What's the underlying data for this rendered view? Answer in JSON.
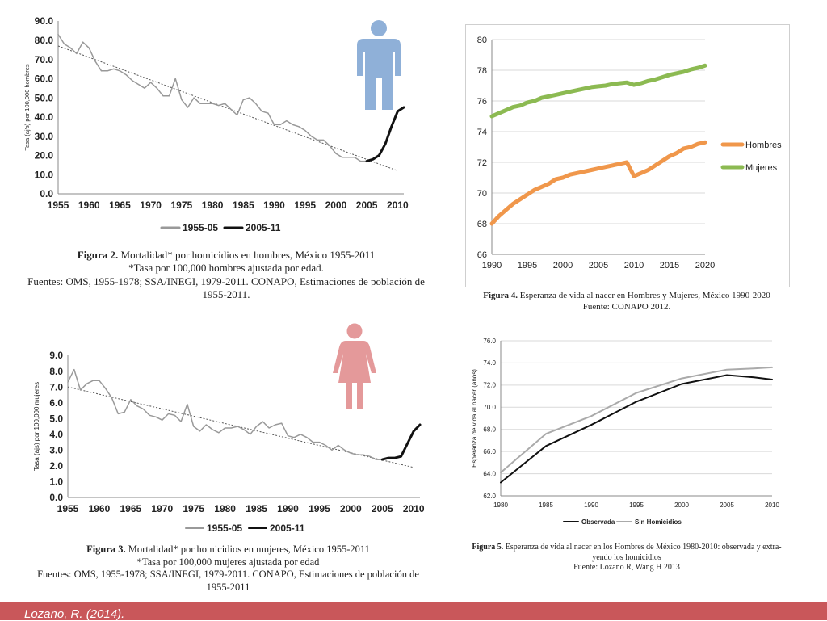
{
  "colors": {
    "man_icon": "#8fb0d8",
    "woman_icon": "#e4999a",
    "hombres": "#f0974b",
    "mujeres": "#8cba52",
    "footer": "#c9575a",
    "dark": "#111111",
    "gray": "#999999"
  },
  "icons": {
    "man": "man-icon",
    "woman": "woman-icon"
  },
  "footer_text": "Lozano, R. (2014).",
  "fig2": {
    "caption": {
      "title_bold": "Figura 2.",
      "title_rest": " Mortalidad* por homicidios en hombres, México 1955-2011",
      "line2": "*Tasa por 100,000 hombres ajustada por edad.",
      "line3": "Fuentes: OMS, 1955-1978; SSA/INEGI, 1979-2011. CONAPO, Estimaciones de población de",
      "line4": "1955-2011."
    },
    "chart_data": {
      "type": "line",
      "ylabel": "Tasa (aj's) por 100,000 hombres",
      "ylim": [
        0,
        90
      ],
      "yticks": [
        "0.0",
        "10.0",
        "20.0",
        "30.0",
        "40.0",
        "50.0",
        "60.0",
        "70.0",
        "80.0",
        "90.0"
      ],
      "xlim": [
        1955,
        2011
      ],
      "xticks": [
        "1955",
        "1960",
        "1965",
        "1970",
        "1975",
        "1980",
        "1985",
        "1990",
        "1995",
        "2000",
        "2005",
        "2010"
      ],
      "series": [
        {
          "name": "1955-05",
          "x": [
            1955,
            1956,
            1957,
            1958,
            1959,
            1960,
            1961,
            1962,
            1963,
            1964,
            1965,
            1966,
            1967,
            1968,
            1969,
            1970,
            1971,
            1972,
            1973,
            1974,
            1975,
            1976,
            1977,
            1978,
            1979,
            1980,
            1981,
            1982,
            1983,
            1984,
            1985,
            1986,
            1987,
            1988,
            1989,
            1990,
            1991,
            1992,
            1993,
            1994,
            1995,
            1996,
            1997,
            1998,
            1999,
            2000,
            2001,
            2002,
            2003,
            2004,
            2005
          ],
          "values": [
            83,
            78,
            76,
            73,
            79,
            76,
            69,
            64,
            64,
            65,
            64,
            62,
            59,
            57,
            55,
            58,
            55,
            51,
            51,
            60,
            49,
            45,
            50,
            47,
            47,
            47,
            46,
            47,
            44,
            41,
            49,
            50,
            47,
            43,
            42,
            36,
            36,
            38,
            36,
            35,
            33,
            30,
            28,
            28,
            25,
            21,
            19,
            19,
            19,
            17,
            17
          ]
        },
        {
          "name": "2005-11",
          "x": [
            2005,
            2006,
            2007,
            2008,
            2009,
            2010,
            2011
          ],
          "values": [
            17,
            18,
            20,
            26,
            35,
            43,
            45
          ]
        }
      ],
      "trend": {
        "x": [
          1955,
          2010
        ],
        "values": [
          77,
          12
        ]
      }
    }
  },
  "fig3": {
    "caption": {
      "title_bold": "Figura 3.",
      "title_rest": " Mortalidad* por homicidios en mujeres, México 1955-2011",
      "line2": "*Tasa por 100,000 mujeres ajustada por edad",
      "line3": "Fuentes: OMS, 1955-1978; SSA/INEGI, 1979-2011. CONAPO, Estimaciones de población de",
      "line4": "1955-2011"
    },
    "chart_data": {
      "type": "line",
      "ylabel": "Tasa (ajs) por 100,000 mujeres",
      "ylim": [
        0,
        9
      ],
      "yticks": [
        "0.0",
        "1.0",
        "2.0",
        "3.0",
        "4.0",
        "5.0",
        "6.0",
        "7.0",
        "8.0",
        "9.0"
      ],
      "xlim": [
        1955,
        2011
      ],
      "xticks": [
        "1955",
        "1960",
        "1965",
        "1970",
        "1975",
        "1980",
        "1985",
        "1990",
        "1995",
        "2000",
        "2005",
        "2010"
      ],
      "series": [
        {
          "name": "1955-05",
          "x": [
            1955,
            1956,
            1957,
            1958,
            1959,
            1960,
            1961,
            1962,
            1963,
            1964,
            1965,
            1966,
            1967,
            1968,
            1969,
            1970,
            1971,
            1972,
            1973,
            1974,
            1975,
            1976,
            1977,
            1978,
            1979,
            1980,
            1981,
            1982,
            1983,
            1984,
            1985,
            1986,
            1987,
            1988,
            1989,
            1990,
            1991,
            1992,
            1993,
            1994,
            1995,
            1996,
            1997,
            1998,
            1999,
            2000,
            2001,
            2002,
            2003,
            2004,
            2005
          ],
          "values": [
            7.3,
            8.1,
            6.8,
            7.2,
            7.4,
            7.4,
            6.9,
            6.3,
            5.3,
            5.4,
            6.2,
            5.8,
            5.6,
            5.2,
            5.1,
            4.9,
            5.3,
            5.2,
            4.8,
            5.9,
            4.5,
            4.2,
            4.6,
            4.3,
            4.1,
            4.4,
            4.4,
            4.5,
            4.3,
            4.0,
            4.5,
            4.8,
            4.4,
            4.6,
            4.7,
            3.9,
            3.8,
            4.0,
            3.8,
            3.5,
            3.5,
            3.3,
            3.0,
            3.3,
            3.0,
            2.8,
            2.7,
            2.7,
            2.6,
            2.4,
            2.4
          ]
        },
        {
          "name": "2005-11",
          "x": [
            2005,
            2006,
            2007,
            2008,
            2009,
            2010,
            2011
          ],
          "values": [
            2.4,
            2.5,
            2.5,
            2.6,
            3.4,
            4.2,
            4.6
          ]
        }
      ],
      "trend": {
        "x": [
          1955,
          2010
        ],
        "values": [
          7.0,
          1.9
        ]
      }
    }
  },
  "fig4": {
    "caption": {
      "title_bold": "Figura 4.",
      "title_rest": " Esperanza de vida al nacer en Hombres y Mujeres, México 1990-2020",
      "line2": "Fuente: CONAPO 2012."
    },
    "chart_data": {
      "type": "line",
      "ylim": [
        66,
        80
      ],
      "yticks": [
        "66",
        "68",
        "70",
        "72",
        "74",
        "76",
        "78",
        "80"
      ],
      "xlim": [
        1990,
        2020
      ],
      "xticks": [
        "1990",
        "1995",
        "2000",
        "2005",
        "2010",
        "2015",
        "2020"
      ],
      "legend_position": "right",
      "series": [
        {
          "name": "Hombres",
          "x": [
            1990,
            1991,
            1992,
            1993,
            1994,
            1995,
            1996,
            1997,
            1998,
            1999,
            2000,
            2001,
            2002,
            2003,
            2004,
            2005,
            2006,
            2007,
            2008,
            2009,
            2010,
            2011,
            2012,
            2013,
            2014,
            2015,
            2016,
            2017,
            2018,
            2019,
            2020
          ],
          "values": [
            68.0,
            68.5,
            68.9,
            69.3,
            69.6,
            69.9,
            70.2,
            70.4,
            70.6,
            70.9,
            71.0,
            71.2,
            71.3,
            71.4,
            71.5,
            71.6,
            71.7,
            71.8,
            71.9,
            72.0,
            71.1,
            71.3,
            71.5,
            71.8,
            72.1,
            72.4,
            72.6,
            72.9,
            73.0,
            73.2,
            73.3
          ]
        },
        {
          "name": "Mujeres",
          "x": [
            1990,
            1991,
            1992,
            1993,
            1994,
            1995,
            1996,
            1997,
            1998,
            1999,
            2000,
            2001,
            2002,
            2003,
            2004,
            2005,
            2006,
            2007,
            2008,
            2009,
            2010,
            2011,
            2012,
            2013,
            2014,
            2015,
            2016,
            2017,
            2018,
            2019,
            2020
          ],
          "values": [
            75.0,
            75.2,
            75.4,
            75.6,
            75.7,
            75.9,
            76.0,
            76.2,
            76.3,
            76.4,
            76.5,
            76.6,
            76.7,
            76.8,
            76.9,
            76.95,
            77.0,
            77.1,
            77.15,
            77.2,
            77.05,
            77.15,
            77.3,
            77.4,
            77.55,
            77.7,
            77.8,
            77.9,
            78.05,
            78.15,
            78.3
          ]
        }
      ]
    }
  },
  "fig5": {
    "caption": {
      "title_bold": "Figura 5.",
      "title_rest": " Esperanza de vida al nacer en los Hombres de México 1980-2010: observada y extra-",
      "line2": "yendo los homicidios",
      "line3": "Fuente: Lozano R, Wang H 2013"
    },
    "chart_data": {
      "type": "line",
      "ylabel": "Esperanza de vida al nacer (años)",
      "ylim": [
        62,
        76
      ],
      "yticks": [
        "62.0",
        "64.0",
        "66.0",
        "68.0",
        "70.0",
        "72.0",
        "74.0",
        "76.0"
      ],
      "xlim": [
        1980,
        2010
      ],
      "xticks": [
        "1980",
        "1985",
        "1990",
        "1995",
        "2000",
        "2005",
        "2010"
      ],
      "legend_position": "bottom",
      "series": [
        {
          "name": "Observada",
          "x": [
            1980,
            1985,
            1990,
            1995,
            2000,
            2005,
            2008,
            2010
          ],
          "values": [
            63.2,
            66.5,
            68.4,
            70.5,
            72.1,
            72.9,
            72.7,
            72.5
          ]
        },
        {
          "name": "Sin Homicidios",
          "x": [
            1980,
            1985,
            1990,
            1995,
            2000,
            2005,
            2008,
            2010
          ],
          "values": [
            64.1,
            67.6,
            69.2,
            71.3,
            72.6,
            73.4,
            73.5,
            73.6
          ]
        }
      ]
    }
  }
}
